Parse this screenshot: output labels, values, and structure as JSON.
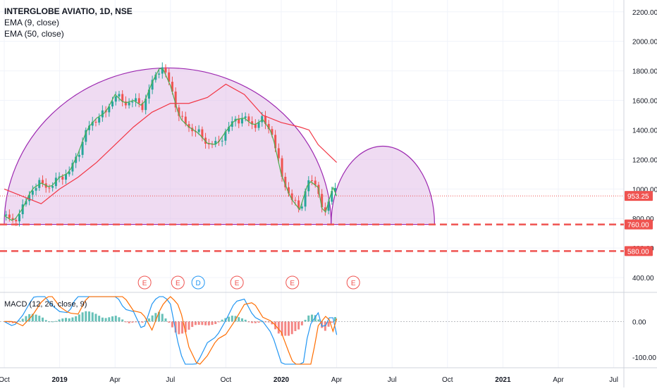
{
  "chart_data": {
    "type": "line",
    "symbol": "INTERGLOBE AVIATIO",
    "interval": "1D",
    "exchange": "NSE",
    "title": "INTERGLOBE AVIATIO, 1D, NSE",
    "indicators": [
      "EMA (9, close)",
      "EMA (50, close)"
    ],
    "macd_label": "MACD (12, 26, close, 9)",
    "colors": {
      "up": "#26a69a",
      "down": "#ef5350",
      "ema9": "#4caf50",
      "ema50": "#f23645",
      "arc_stroke": "#9c27b0",
      "arc_fill": "#e1bee7",
      "macd_line": "#2196f3",
      "signal_line": "#ff6d00",
      "grid": "#f0f3fa",
      "axis_text": "#131722"
    },
    "price_axis": {
      "ticks": [
        "2200.00",
        "2000.00",
        "1800.00",
        "1600.00",
        "1400.00",
        "1200.00",
        "1000.00",
        "800.00",
        "600.00",
        "400.00"
      ],
      "ylim": [
        300,
        2280
      ]
    },
    "macd_axis": {
      "ticks": [
        "0.00",
        "-100.00"
      ],
      "ylim": [
        -130,
        80
      ]
    },
    "time_axis": {
      "labels": [
        "Oct",
        "2019",
        "Apr",
        "Jul",
        "Oct",
        "2020",
        "Apr",
        "Jul",
        "Oct",
        "2021",
        "Apr",
        "Jul"
      ]
    },
    "price_labels": [
      {
        "text": "953.25",
        "value": 953.25,
        "color": "#ef5350",
        "style": "dotted"
      },
      {
        "text": "760.00",
        "value": 760,
        "color": "#ef5350",
        "style": "dashed"
      },
      {
        "text": "580.00",
        "value": 580,
        "color": "#ef5350",
        "style": "dashed"
      }
    ],
    "events": [
      {
        "label": "E",
        "type": "earnings"
      },
      {
        "label": "E",
        "type": "earnings"
      },
      {
        "label": "D",
        "type": "dividend"
      },
      {
        "label": "E",
        "type": "earnings"
      },
      {
        "label": "E",
        "type": "earnings"
      },
      {
        "label": "E",
        "type": "earnings"
      }
    ],
    "price_series": {
      "x_month_index": [
        0,
        0.5,
        1,
        1.5,
        2,
        2.5,
        3,
        3.5,
        4,
        4.5,
        5,
        5.5,
        6,
        6.5,
        7,
        7.5,
        8,
        8.5,
        9,
        9.5,
        10,
        10.5,
        11,
        11.5,
        12,
        12.5,
        13,
        13.5,
        14,
        14.5,
        15,
        15.5,
        16,
        16.5,
        17,
        17.3,
        17.6,
        17.9,
        18
      ],
      "close": [
        820,
        780,
        870,
        1000,
        1040,
        1010,
        1080,
        1110,
        1240,
        1410,
        1480,
        1520,
        1640,
        1580,
        1600,
        1560,
        1720,
        1840,
        1700,
        1480,
        1420,
        1380,
        1310,
        1300,
        1390,
        1470,
        1480,
        1430,
        1470,
        1380,
        1100,
        940,
        860,
        1060,
        1010,
        800,
        930,
        1050,
        953.25
      ]
    },
    "ema50": {
      "x_month_index": [
        0,
        2,
        3,
        4,
        5,
        6,
        7,
        8,
        9,
        10,
        11,
        12,
        13,
        14,
        15,
        16,
        16.5,
        17,
        18
      ],
      "values": [
        1000,
        900,
        1000,
        1080,
        1180,
        1300,
        1420,
        1520,
        1580,
        1580,
        1620,
        1710,
        1640,
        1500,
        1450,
        1420,
        1400,
        1300,
        1180
      ]
    },
    "shapes": {
      "arc1": {
        "start_month": 0,
        "end_month": 17.7,
        "base_value": 760,
        "peak_value": 1820
      },
      "arc2": {
        "start_month": 17.7,
        "end_month": 23.3,
        "base_value": 760,
        "peak_value": 1290
      }
    }
  }
}
